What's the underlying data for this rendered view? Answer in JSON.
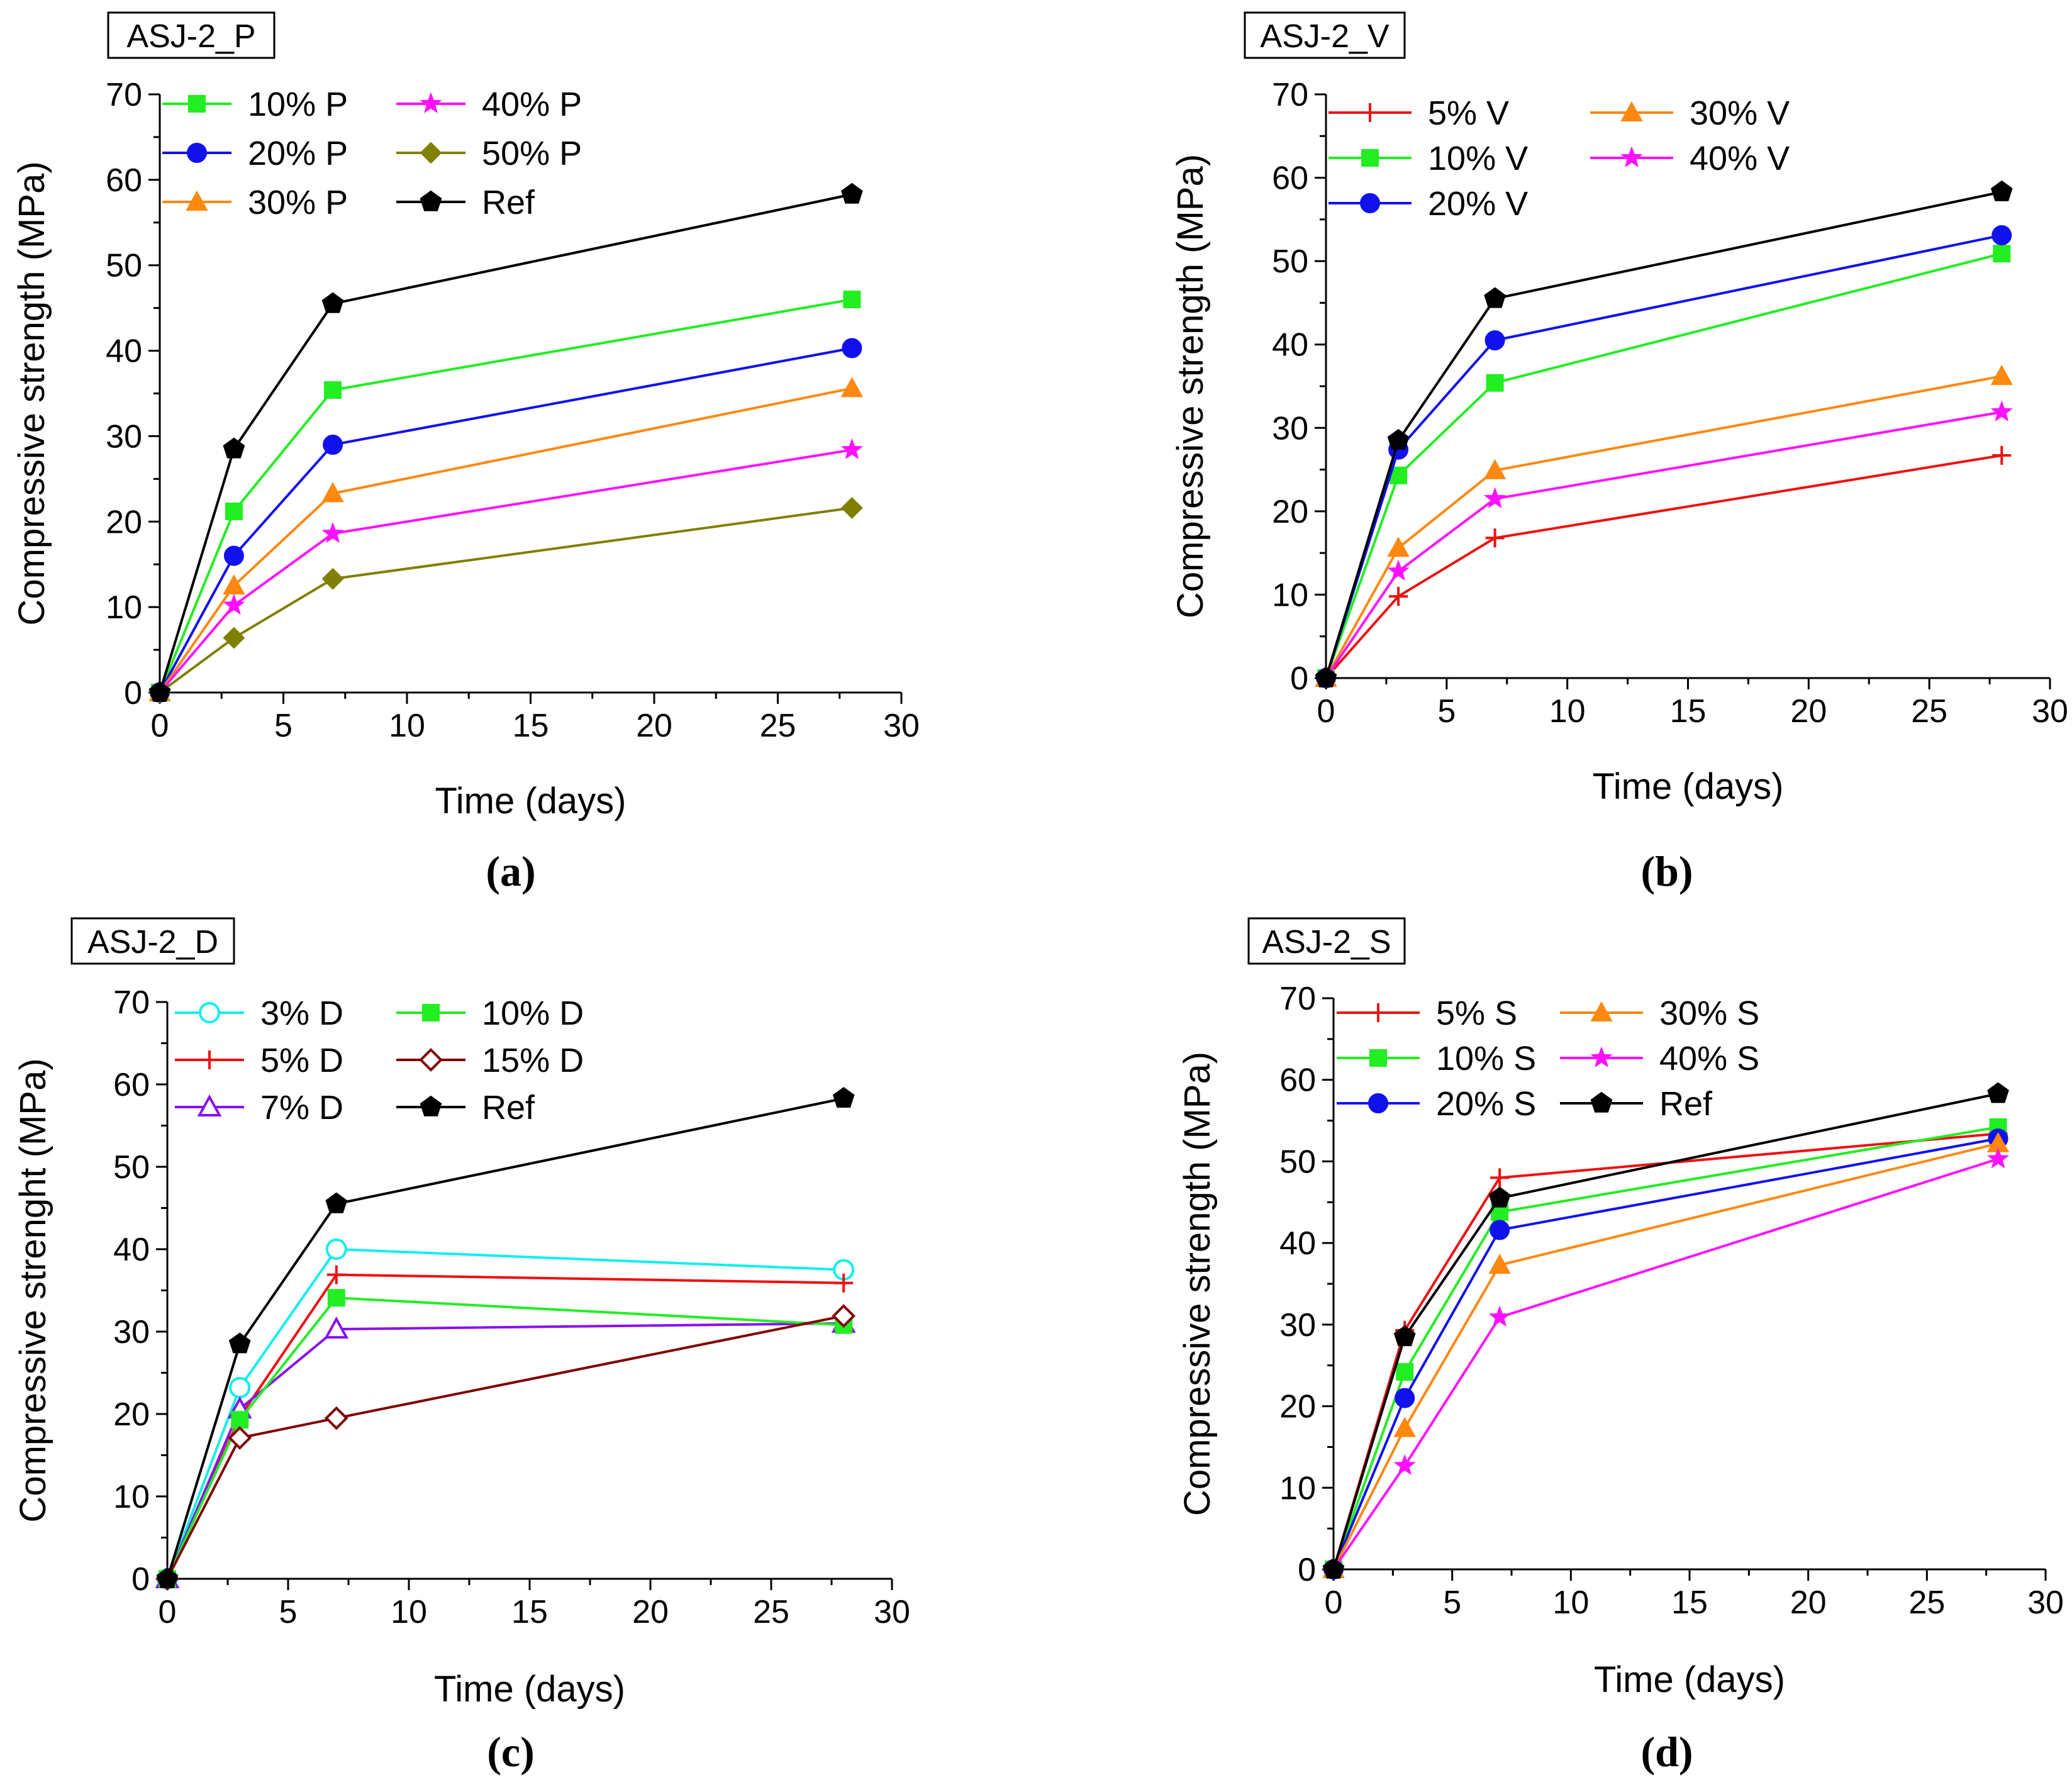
{
  "chart_data": [
    {
      "type": "line",
      "panel_label": "(a)",
      "box_label": "ASJ-2_P",
      "xlabel": "Time (days)",
      "ylabel": "Compressive strength (MPa)",
      "xlim": [
        0,
        30
      ],
      "ylim": [
        0,
        70
      ],
      "xticks": [
        "0",
        "5",
        "10",
        "15",
        "20",
        "25",
        "30"
      ],
      "yticks": [
        "0",
        "10",
        "20",
        "30",
        "40",
        "50",
        "60",
        "70"
      ],
      "x": [
        0,
        3,
        7,
        28
      ],
      "series": [
        {
          "name": "10% P",
          "color": "#22ee22",
          "marker": "square",
          "values": [
            0,
            21.2,
            35.4,
            46.0
          ]
        },
        {
          "name": "20% P",
          "color": "#1111ee",
          "marker": "circle",
          "values": [
            0,
            16.0,
            29.0,
            40.3
          ]
        },
        {
          "name": "30% P",
          "color": "#ff8811",
          "marker": "triangle",
          "values": [
            0,
            12.5,
            23.3,
            35.6
          ]
        },
        {
          "name": "40% P",
          "color": "#ff11ff",
          "marker": "star",
          "values": [
            0,
            10.2,
            18.6,
            28.4
          ]
        },
        {
          "name": "50% P",
          "color": "#808000",
          "marker": "diamond",
          "values": [
            0,
            6.4,
            13.3,
            21.6
          ]
        },
        {
          "name": "Ref",
          "color": "#000000",
          "marker": "pentagon",
          "values": [
            0,
            28.5,
            45.5,
            58.3
          ]
        }
      ]
    },
    {
      "type": "line",
      "panel_label": "(b)",
      "box_label": "ASJ-2_V",
      "xlabel": "Time (days)",
      "ylabel": "Compressive strength (MPa)",
      "xlim": [
        0,
        30
      ],
      "ylim": [
        0,
        70
      ],
      "xticks": [
        "0",
        "5",
        "10",
        "15",
        "20",
        "25",
        "30"
      ],
      "yticks": [
        "0",
        "10",
        "20",
        "30",
        "40",
        "50",
        "60",
        "70"
      ],
      "x": [
        0,
        3,
        7,
        28
      ],
      "series": [
        {
          "name": "5% V",
          "color": "#ee1111",
          "marker": "plus",
          "values": [
            0,
            9.8,
            16.8,
            26.7
          ]
        },
        {
          "name": "10% V",
          "color": "#22ee22",
          "marker": "square",
          "values": [
            0,
            24.3,
            35.4,
            50.9
          ]
        },
        {
          "name": "20% V",
          "color": "#1111ee",
          "marker": "circle",
          "values": [
            0,
            27.4,
            40.5,
            53.1
          ]
        },
        {
          "name": "30% V",
          "color": "#ff8811",
          "marker": "triangle",
          "values": [
            0,
            15.6,
            24.9,
            36.2
          ]
        },
        {
          "name": "40% V",
          "color": "#ff11ff",
          "marker": "star",
          "values": [
            0,
            12.8,
            21.5,
            31.9
          ]
        },
        {
          "name": "Ref",
          "color": "#000000",
          "marker": "pentagon",
          "values": [
            0,
            28.5,
            45.5,
            58.3
          ]
        }
      ]
    },
    {
      "type": "line",
      "panel_label": "(c)",
      "box_label": "ASJ-2_D",
      "xlabel": "Time (days)",
      "ylabel": "Compressive strenght (MPa)",
      "xlim": [
        0,
        30
      ],
      "ylim": [
        0,
        70
      ],
      "xticks": [
        "0",
        "5",
        "10",
        "15",
        "20",
        "25",
        "30"
      ],
      "yticks": [
        "0",
        "10",
        "20",
        "30",
        "40",
        "50",
        "60",
        "70"
      ],
      "x": [
        0,
        3,
        7,
        28
      ],
      "series": [
        {
          "name": "3% D",
          "color": "#11eeee",
          "marker": "circle-open",
          "values": [
            0,
            23.2,
            40.0,
            37.5
          ]
        },
        {
          "name": "5% D",
          "color": "#ee1111",
          "marker": "plus",
          "values": [
            0,
            19.6,
            36.9,
            35.9
          ]
        },
        {
          "name": "7% D",
          "color": "#8811ee",
          "marker": "triangle-open",
          "values": [
            0,
            20.6,
            30.3,
            31.0
          ]
        },
        {
          "name": "10% D",
          "color": "#22ee22",
          "marker": "square",
          "values": [
            0,
            19.3,
            34.1,
            30.8
          ]
        },
        {
          "name": "15% D",
          "color": "#800000",
          "marker": "diamond-open",
          "values": [
            0,
            17.1,
            19.5,
            31.9
          ]
        },
        {
          "name": "Ref",
          "color": "#000000",
          "marker": "pentagon",
          "values": [
            0,
            28.5,
            45.5,
            58.3
          ]
        }
      ]
    },
    {
      "type": "line",
      "panel_label": "(d)",
      "box_label": "ASJ-2_S",
      "xlabel": "Time (days)",
      "ylabel": "Compressive strength (MPa)",
      "xlim": [
        0,
        30
      ],
      "ylim": [
        0,
        70
      ],
      "xticks": [
        "0",
        "5",
        "10",
        "15",
        "20",
        "25",
        "30"
      ],
      "yticks": [
        "0",
        "10",
        "20",
        "30",
        "40",
        "50",
        "60",
        "70"
      ],
      "x": [
        0,
        3,
        7,
        28
      ],
      "series": [
        {
          "name": "5% S",
          "color": "#ee1111",
          "marker": "plus",
          "values": [
            0,
            29.3,
            48.0,
            53.4
          ]
        },
        {
          "name": "10% S",
          "color": "#22ee22",
          "marker": "square",
          "values": [
            0,
            24.2,
            43.8,
            54.2
          ]
        },
        {
          "name": "20% S",
          "color": "#1111ee",
          "marker": "circle",
          "values": [
            0,
            21.0,
            41.6,
            52.8
          ]
        },
        {
          "name": "30% S",
          "color": "#ff8811",
          "marker": "triangle",
          "values": [
            0,
            17.3,
            37.3,
            52.2
          ]
        },
        {
          "name": "40% S",
          "color": "#ff11ff",
          "marker": "star",
          "values": [
            0,
            12.7,
            30.9,
            50.3
          ]
        },
        {
          "name": "Ref",
          "color": "#000000",
          "marker": "pentagon",
          "values": [
            0,
            28.5,
            45.5,
            58.3
          ]
        }
      ]
    }
  ]
}
